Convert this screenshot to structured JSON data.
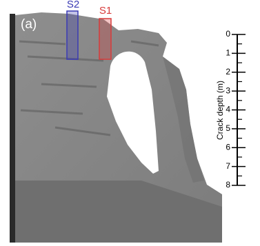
{
  "panel_label": "(a)",
  "sites": [
    {
      "label": "S2",
      "color": "#3a3ab4"
    },
    {
      "label": "S1",
      "color": "#d83a3a"
    }
  ],
  "scale": {
    "label": "Crack depth (m)",
    "ticks": [
      0,
      1,
      2,
      3,
      4,
      5,
      6,
      7,
      8
    ]
  }
}
